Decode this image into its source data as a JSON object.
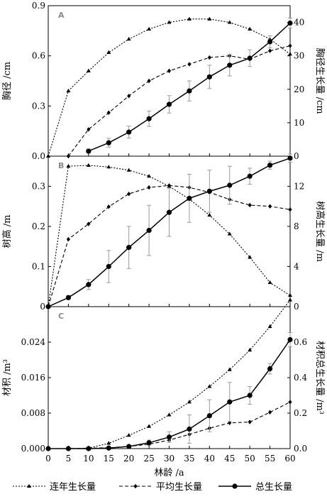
{
  "xaxis": {
    "label": "林龄 /a",
    "ticks": [
      0,
      5,
      10,
      15,
      20,
      25,
      30,
      35,
      40,
      45,
      50,
      55,
      60
    ],
    "range": [
      0,
      60
    ]
  },
  "legend": {
    "position": "bottom",
    "entries": [
      {
        "key": "annual",
        "label": "连年生长量",
        "style": "dotted",
        "marker": "triangle"
      },
      {
        "key": "mean",
        "label": "平均生长量",
        "style": "dashed",
        "marker": "diamond"
      },
      {
        "key": "total",
        "label": "总生长量",
        "style": "solid",
        "marker": "circle"
      }
    ]
  },
  "chart_data": [
    {
      "type": "line",
      "panel_label": "A",
      "ylabel_left": "胸径 /cm",
      "ylabel_right": "胸径生长量 /cm",
      "ylim_left": [
        0,
        0.9
      ],
      "yticks_left": [
        "0.0",
        "0.3",
        "0.6",
        "0.9"
      ],
      "yticks_left_values": [
        0,
        0.3,
        0.6,
        0.9
      ],
      "ylim_right": [
        0,
        45
      ],
      "yticks_right": [
        "0",
        "10",
        "20",
        "30",
        "40"
      ],
      "yticks_right_values": [
        0,
        10,
        20,
        30,
        40
      ],
      "series": [
        {
          "key": "annual",
          "axis": "left",
          "x": [
            0,
            5,
            10,
            15,
            20,
            25,
            30,
            35,
            40,
            45,
            50,
            55,
            60
          ],
          "y": [
            0,
            0.39,
            0.51,
            0.62,
            0.7,
            0.76,
            0.8,
            0.82,
            0.82,
            0.8,
            0.76,
            0.7,
            0.61
          ]
        },
        {
          "key": "mean",
          "axis": "left",
          "x": [
            5,
            10,
            15,
            20,
            25,
            30,
            35,
            40,
            45,
            50,
            55,
            60
          ],
          "y": [
            0,
            0.16,
            0.26,
            0.36,
            0.45,
            0.51,
            0.55,
            0.59,
            0.6,
            0.58,
            0.63,
            0.66
          ]
        },
        {
          "key": "total",
          "axis": "right",
          "x": [
            10,
            15,
            20,
            25,
            30,
            35,
            40,
            45,
            50,
            55,
            60
          ],
          "y": [
            1.5,
            4,
            7.2,
            11.2,
            15.5,
            19.5,
            23.7,
            27.2,
            29.3,
            34.2,
            39.8
          ],
          "err": [
            0.6,
            1.3,
            1.8,
            2.3,
            2.6,
            3,
            3.5,
            3.2,
            2.5,
            1.8,
            1.5
          ]
        }
      ]
    },
    {
      "type": "line",
      "panel_label": "B",
      "ylabel_left": "树高 /m",
      "ylabel_right": "树高生长量 /m",
      "ylim_left": [
        0,
        0.375
      ],
      "yticks_left": [
        "0",
        "0.1",
        "0.2",
        "0.3"
      ],
      "yticks_left_values": [
        0,
        0.1,
        0.2,
        0.3
      ],
      "ylim_right": [
        0,
        15
      ],
      "yticks_right": [
        "0",
        "4",
        "8",
        "12"
      ],
      "yticks_right_values": [
        0,
        4,
        8,
        12
      ],
      "series": [
        {
          "key": "annual",
          "axis": "left",
          "x": [
            0,
            5,
            10,
            15,
            20,
            25,
            30,
            35,
            40,
            45,
            50,
            55,
            60
          ],
          "y": [
            0,
            0.35,
            0.352,
            0.348,
            0.34,
            0.325,
            0.3,
            0.268,
            0.228,
            0.181,
            0.123,
            0.06,
            0.028
          ]
        },
        {
          "key": "mean",
          "axis": "left",
          "x": [
            0,
            5,
            10,
            15,
            20,
            25,
            30,
            35,
            40,
            45,
            50,
            55,
            60
          ],
          "y": [
            0,
            0.168,
            0.206,
            0.249,
            0.281,
            0.297,
            0.302,
            0.297,
            0.285,
            0.267,
            0.253,
            0.25,
            0.242
          ]
        },
        {
          "key": "total",
          "axis": "right",
          "x": [
            0,
            5,
            10,
            15,
            20,
            25,
            30,
            35,
            40,
            45,
            50,
            55,
            60
          ],
          "y": [
            0,
            0.9,
            2.2,
            4,
            5.9,
            7.6,
            9.4,
            10.8,
            11.5,
            12.1,
            13,
            14.1,
            14.8
          ],
          "err": [
            0,
            0.2,
            0.5,
            1.6,
            2.1,
            2.5,
            2.4,
            2.4,
            2.1,
            1.9,
            0.8,
            0.4,
            0.4
          ]
        }
      ]
    },
    {
      "type": "line",
      "panel_label": "C",
      "ylabel_left": "材积 /m³",
      "ylabel_right": "材积总生长量 /m³",
      "ylim_left": [
        0,
        0.032
      ],
      "yticks_left": [
        "0.000",
        "0.008",
        "0.016",
        "0.024"
      ],
      "yticks_left_values": [
        0,
        0.008,
        0.016,
        0.024
      ],
      "ylim_right": [
        0,
        0.8
      ],
      "yticks_right": [
        "0.0",
        "0.2",
        "0.4",
        "0.6"
      ],
      "yticks_right_values": [
        0,
        0.2,
        0.4,
        0.6
      ],
      "series": [
        {
          "key": "annual",
          "axis": "left",
          "x": [
            0,
            5,
            10,
            15,
            20,
            25,
            30,
            35,
            40,
            45,
            50,
            55,
            60
          ],
          "y": [
            0,
            0,
            0.0001,
            0.0012,
            0.003,
            0.005,
            0.0076,
            0.0105,
            0.014,
            0.0178,
            0.0222,
            0.0275,
            0.0335
          ]
        },
        {
          "key": "mean",
          "axis": "left",
          "x": [
            0,
            5,
            10,
            15,
            20,
            25,
            30,
            35,
            40,
            45,
            50,
            55,
            60
          ],
          "y": [
            0,
            0,
            0.0001,
            0.0002,
            0.0005,
            0.001,
            0.0019,
            0.0032,
            0.0046,
            0.0058,
            0.006,
            0.0082,
            0.0105
          ]
        },
        {
          "key": "total",
          "axis": "right",
          "x": [
            0,
            5,
            10,
            15,
            20,
            25,
            30,
            35,
            40,
            45,
            50,
            55,
            60
          ],
          "y": [
            0,
            0,
            0,
            0.003,
            0.012,
            0.033,
            0.065,
            0.11,
            0.185,
            0.263,
            0.3,
            0.45,
            0.614
          ],
          "err": [
            0,
            0,
            0,
            0.002,
            0.006,
            0.015,
            0.03,
            0.08,
            0.09,
            0.11,
            0.05,
            0.03,
            0.04
          ]
        }
      ]
    }
  ]
}
